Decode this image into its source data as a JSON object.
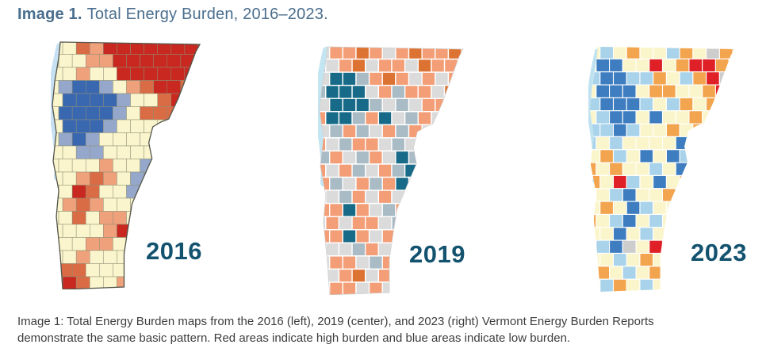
{
  "header": {
    "label": "Image 1.",
    "title": "Total Energy Burden, 2016–2023."
  },
  "caption": {
    "line1": "Image 1: Total Energy Burden maps from the 2016 (left), 2019 (center), and 2023 (right) Vermont Energy Burden Reports",
    "line2": "demonstrate the same basic pattern. Red areas indicate high burden and blue areas indicate low burden."
  },
  "colors": {
    "background": "#FFFFFF",
    "title_text": "#4A6E8E",
    "year_label": "#14536F",
    "caption_text": "#3D3D3D"
  },
  "semantics": {
    "red_areas": "high burden",
    "blue_areas": "low burden",
    "region": "Vermont town-level choropleth"
  },
  "maps": [
    {
      "year": "2016",
      "position": "left",
      "base": "Y",
      "palette": {
        "Y": "#FAF5CC",
        "R": "#C8281F",
        "O": "#D96B45",
        "S": "#EFA17C",
        "B": "#3A68B0",
        "L": "#95A8CB"
      },
      "cell_border": {
        "color": "#8F8F77",
        "width": 0.5
      },
      "outline": {
        "color": "#54554B",
        "width": 1.3
      },
      "lake": {
        "color": "#C7E1F2",
        "width": 8
      },
      "grid": [
        "YYOSRRRRRRRR",
        "YYYSSRRRRRRR",
        "YYSYYRRRRRRO",
        "YLBBLYSORROS",
        "YBBBBLYYOROY",
        "YBBBBLYOOOSY",
        "YBBBLYYYYSYY",
        "YLBLYYYYYYYY",
        "YYLLYYYYYYYY",
        "YYYYSYYLYYYY",
        "YYSOSYLLYYYY",
        "YYROYYLYYYYY",
        "YSOSYYYYYYYY",
        "YYOYSSYYYYYY",
        "YYYYSRSYYYYY",
        "YYYSSYYYYYYY",
        "YYSYYYYYYYYY",
        "YOOYYYYYYYYY",
        "YROYYSYYYYYY"
      ]
    },
    {
      "year": "2019",
      "position": "center",
      "base": "G",
      "palette": {
        "G": "#DBDBDB",
        "M": "#A9BBC5",
        "S": "#F39E76",
        "O": "#DD7332",
        "T": "#176B88"
      },
      "cell_border": {
        "color": "#FFFFFF",
        "width": 1.4
      },
      "outline": {
        "color": "#CFCFCF",
        "width": 0.7
      },
      "lake": {
        "color": "#C3E4F1",
        "width": 10
      },
      "grid": [
        "GSSOSGSOSSOS",
        "MGSOGSSGOSSO",
        "GTTMSOSGSGSO",
        "MTTTGSMSSGOT",
        "GTTTMGMGSSMS",
        "STTMSTGMSGSG",
        "GMSMGSMSGSSG",
        "SGMSSGMGSSGG",
        "MSGMSGTMSGGS",
        "SGSMGSMTGSGS",
        "SMGSMSTGSGSG",
        "SGMSGSGSSGSG",
        "SSTSGMSSGSGS",
        "GSGSSGMSGSGS",
        "SSTSGSSGSGSG",
        "SGGMSGSGSGSG",
        "GSSGMSGSGSGS",
        "SGSOGSMSGSGS",
        "GSSGSGSSGSGS"
      ]
    },
    {
      "year": "2023",
      "position": "right",
      "base": "Y",
      "palette": {
        "Y": "#FBF5CB",
        "B": "#3E7EC0",
        "L": "#A8D3EA",
        "O": "#F3A44E",
        "R": "#DF2026",
        "G": "#CDCDCD"
      },
      "cell_border": {
        "color": "#FFFFFF",
        "width": 1.1
      },
      "outline": null,
      "lake": {
        "color": "#BFE2F1",
        "width": 5
      },
      "grid": [
        "YLYOYYLOYGOG",
        "YBBYYRYORROY",
        "LBBLLOYLORGL",
        "YBBBYOOYYORB",
        "LBBBLYLOYOBY",
        "YLBBYBYYOYOY",
        "LLBLYYOYOYYY",
        "LYLYYYYBYOYY",
        "YOLYBYBLBYYY",
        "OYOYYLYBYYYY",
        "OYRLYBYOYYYY",
        "YYLBYYOYYYYY",
        "YOYBLYYYYYYY",
        "OYLBYLYOYYYY",
        "YYBYLYOYYYYY",
        "YLBGYRYYYYYY",
        "YYLYOYLYYYYY",
        "YOYLYOYYYYYY",
        "YLOYLYOYYYYY"
      ]
    }
  ]
}
